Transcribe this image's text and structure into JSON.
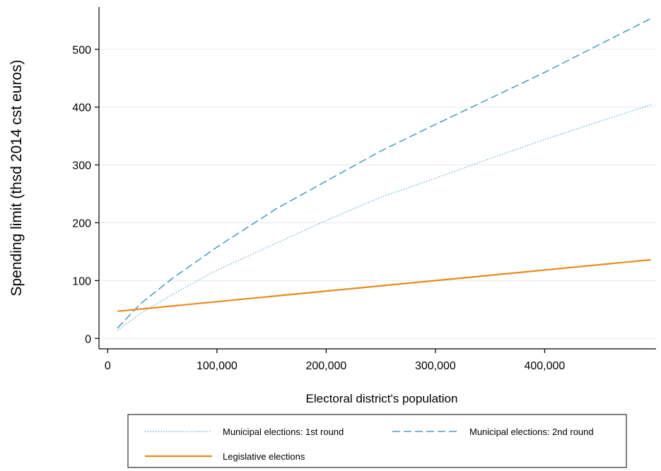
{
  "chart_data": {
    "type": "line",
    "title": "",
    "xlabel": "Electoral district's population",
    "ylabel": "Spending limit (thsd 2014 cst euros)",
    "xlim": [
      -8000,
      502000
    ],
    "ylim": [
      -18,
      573
    ],
    "xticks": [
      0,
      100000,
      200000,
      300000,
      400000
    ],
    "xtick_labels": [
      "0",
      "100,000",
      "200,000",
      "300,000",
      "400,000"
    ],
    "yticks": [
      0,
      100,
      200,
      300,
      400,
      500
    ],
    "ytick_labels": [
      "0",
      "100",
      "200",
      "300",
      "400",
      "500"
    ],
    "grid": "horizontal",
    "legend_position": "bottom",
    "series": [
      {
        "name": "Municipal elections: 1st round",
        "style": "dotted",
        "color": "#3a9fce",
        "x": [
          9000,
          30000,
          60000,
          100000,
          150000,
          200000,
          250000,
          300000,
          350000,
          400000,
          450000,
          497000
        ],
        "y": [
          14,
          43,
          77,
          118,
          161,
          204,
          244,
          277,
          311,
          344,
          375,
          404
        ]
      },
      {
        "name": "Municipal elections: 2nd round",
        "style": "dashed",
        "color": "#2b8cbe",
        "x": [
          9000,
          30000,
          60000,
          100000,
          155000,
          200000,
          250000,
          300000,
          350000,
          400000,
          450000,
          497000
        ],
        "y": [
          18,
          60,
          105,
          158,
          225,
          272,
          324,
          370,
          415,
          460,
          508,
          553
        ]
      },
      {
        "name": "Legislative elections",
        "style": "solid",
        "color": "#e8891c",
        "x": [
          9000,
          497000
        ],
        "y": [
          47,
          136
        ]
      }
    ]
  }
}
